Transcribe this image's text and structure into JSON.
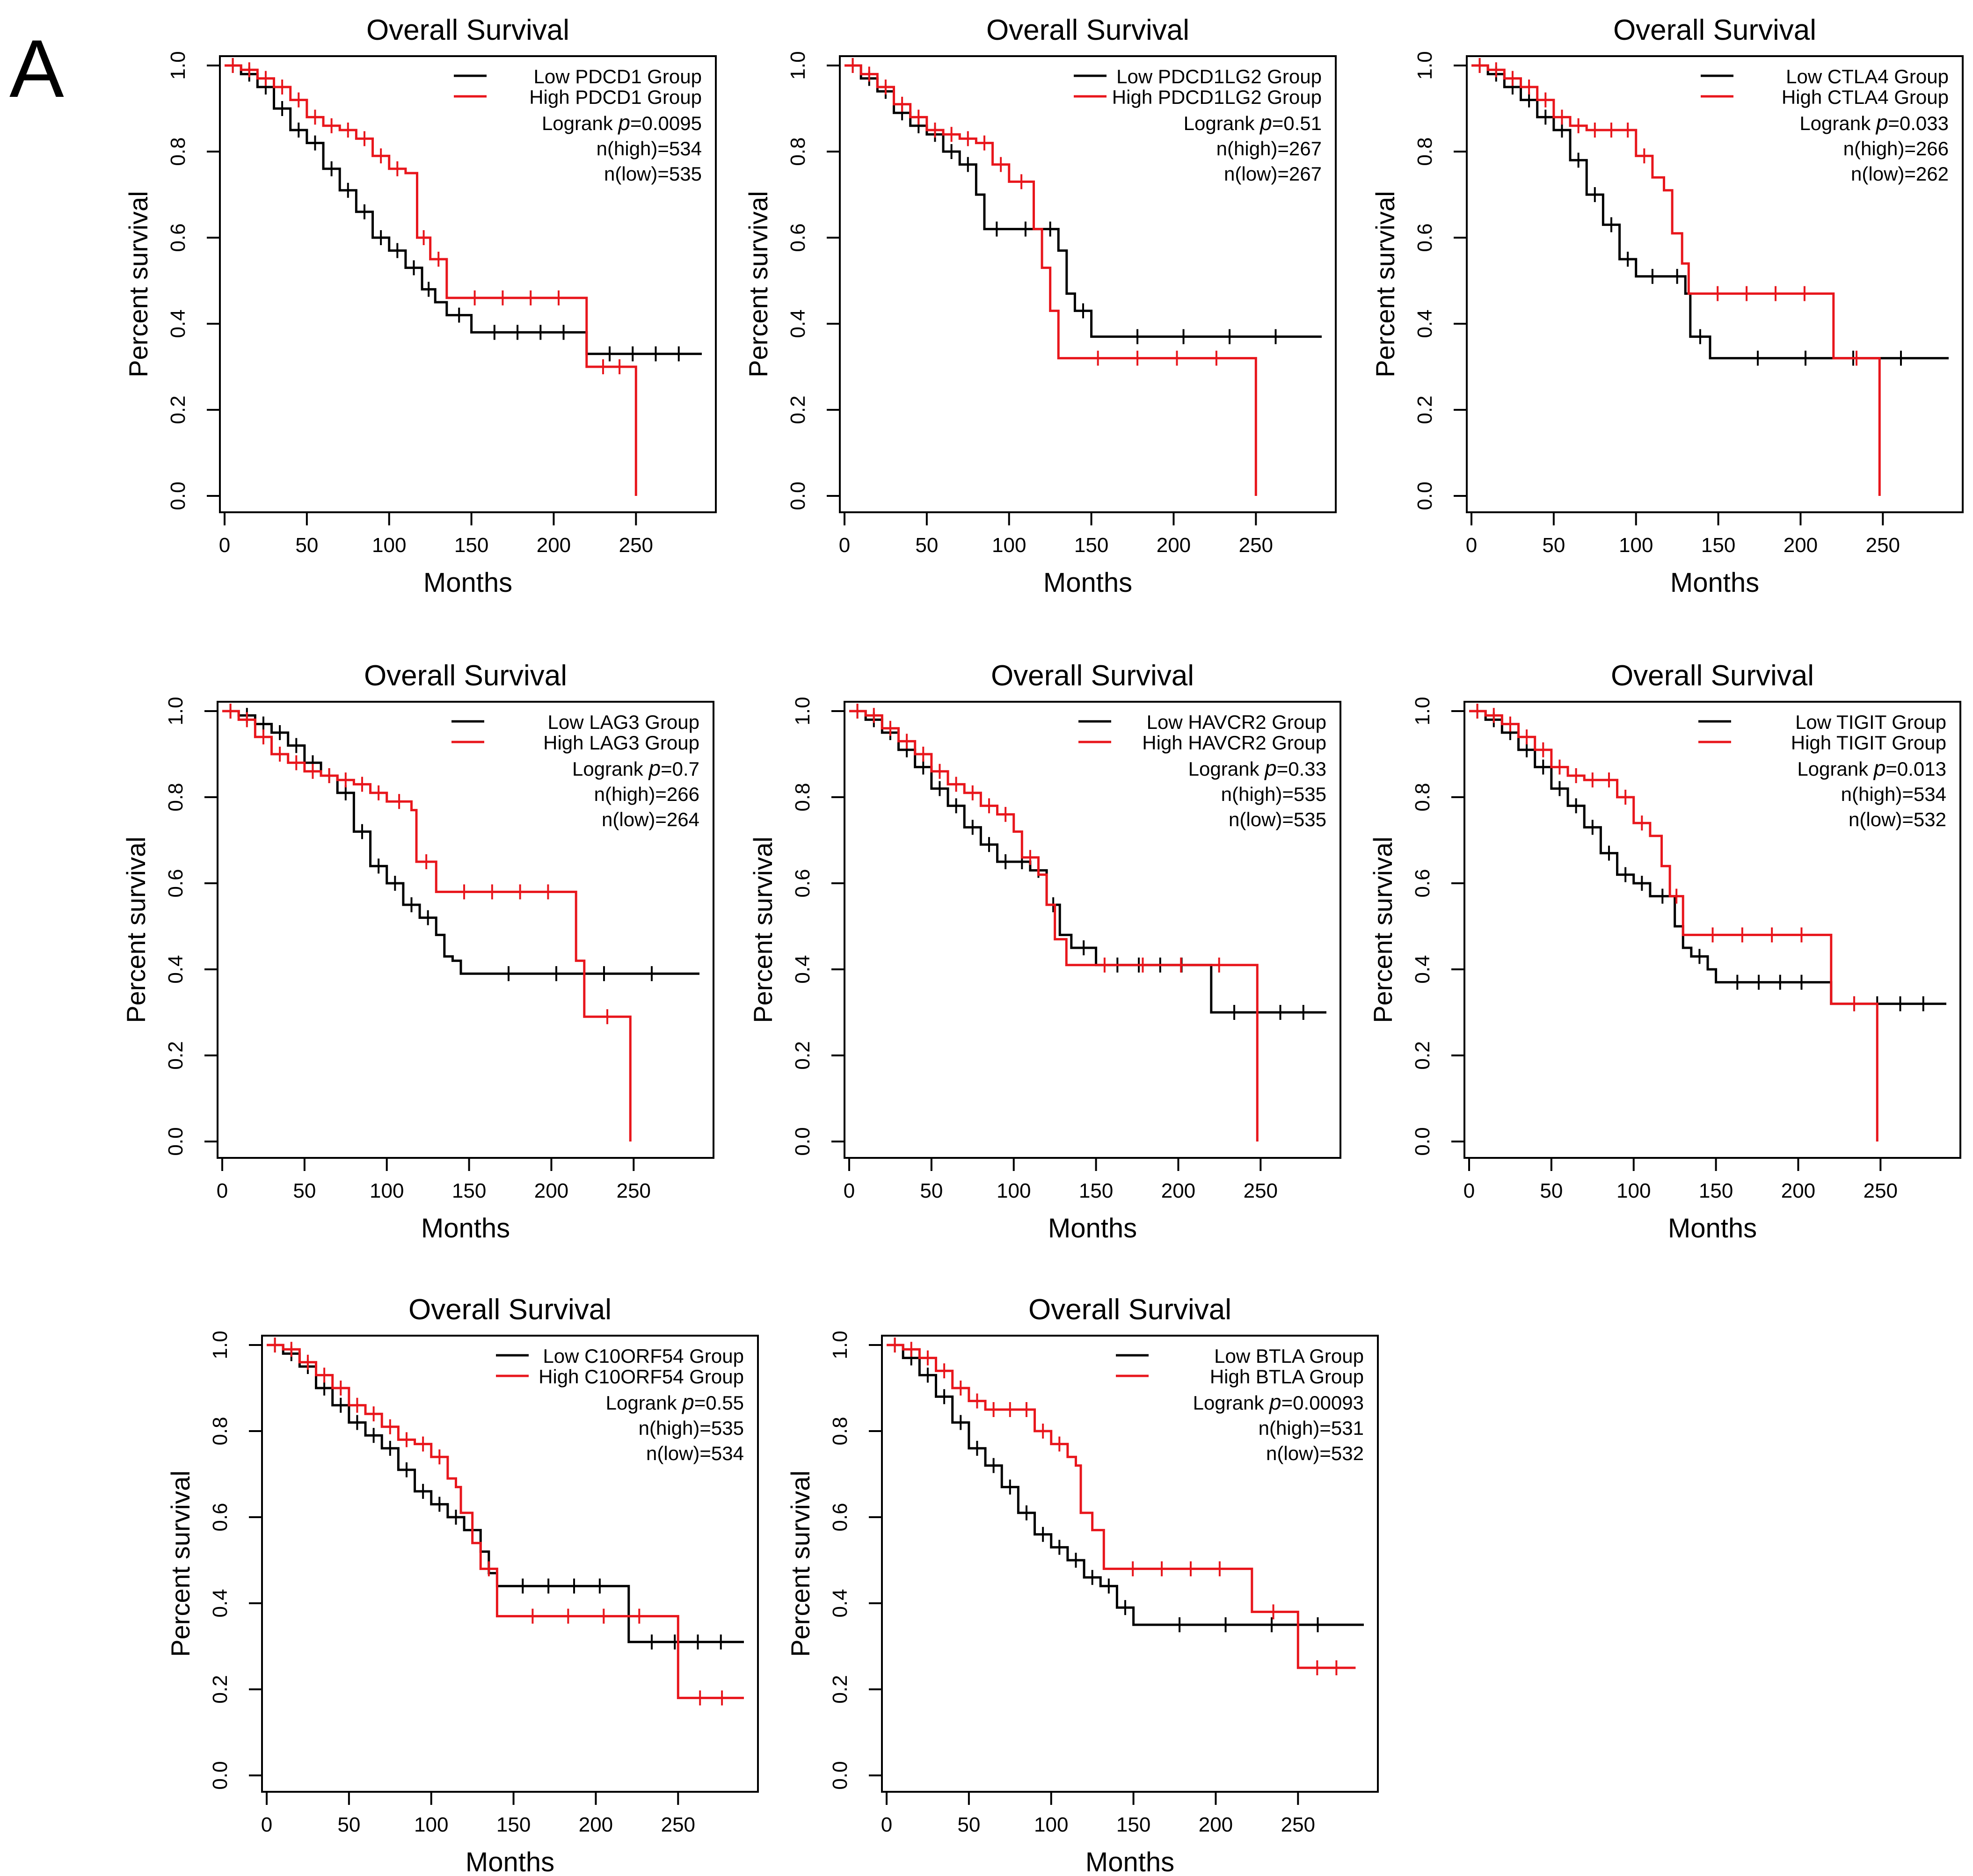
{
  "panel_label": "A",
  "colors": {
    "low": "#000000",
    "high": "#e8161c"
  },
  "chart_data": [
    {
      "type": "line",
      "subtype": "kaplan-meier",
      "title": "Overall Survival",
      "xlabel": "Months",
      "ylabel": "Percent survival",
      "xlim": [
        0,
        290
      ],
      "ylim": [
        0,
        1.0
      ],
      "xticks": [
        "0",
        "50",
        "100",
        "150",
        "200",
        "250"
      ],
      "yticks": [
        "0.0",
        "0.2",
        "0.4",
        "0.6",
        "0.8",
        "1.0"
      ],
      "legend": {
        "position": "top-right",
        "low": "Low PDCD1 Group",
        "high": "High PDCD1 Group"
      },
      "stats": {
        "logrank_prefix": "Logrank ",
        "p_label": "p",
        "p_value": "=0.0095",
        "n_high": "n(high)=534",
        "n_low": "n(low)=535"
      },
      "series": [
        {
          "name": "Low PDCD1 Group",
          "color": "low",
          "times": [
            0,
            10,
            20,
            30,
            40,
            50,
            60,
            70,
            80,
            90,
            100,
            110,
            120,
            128,
            135,
            150,
            220,
            290
          ],
          "survival": [
            1.0,
            0.98,
            0.95,
            0.9,
            0.85,
            0.82,
            0.76,
            0.71,
            0.66,
            0.6,
            0.57,
            0.53,
            0.48,
            0.45,
            0.42,
            0.38,
            0.33,
            0.33
          ]
        },
        {
          "name": "High PDCD1 Group",
          "color": "high",
          "times": [
            0,
            10,
            20,
            30,
            40,
            50,
            60,
            70,
            80,
            90,
            100,
            110,
            117,
            125,
            135,
            220,
            250,
            250
          ],
          "survival": [
            1.0,
            0.99,
            0.97,
            0.95,
            0.92,
            0.88,
            0.86,
            0.85,
            0.83,
            0.79,
            0.76,
            0.75,
            0.6,
            0.55,
            0.46,
            0.3,
            0.3,
            0.0
          ]
        }
      ]
    },
    {
      "type": "line",
      "subtype": "kaplan-meier",
      "title": "Overall Survival",
      "xlabel": "Months",
      "ylabel": "Percent survival",
      "xlim": [
        0,
        290
      ],
      "ylim": [
        0,
        1.0
      ],
      "xticks": [
        "0",
        "50",
        "100",
        "150",
        "200",
        "250"
      ],
      "yticks": [
        "0.0",
        "0.2",
        "0.4",
        "0.6",
        "0.8",
        "1.0"
      ],
      "legend": {
        "position": "top-right",
        "low": "Low PDCD1LG2 Group",
        "high": "High PDCD1LG2 Group"
      },
      "stats": {
        "logrank_prefix": "Logrank ",
        "p_label": "p",
        "p_value": "=0.51",
        "n_high": "n(high)=267",
        "n_low": "n(low)=267"
      },
      "series": [
        {
          "name": "Low PDCD1LG2 Group",
          "color": "low",
          "times": [
            0,
            10,
            20,
            30,
            40,
            50,
            60,
            70,
            80,
            85,
            100,
            120,
            130,
            135,
            140,
            150,
            290
          ],
          "survival": [
            1.0,
            0.97,
            0.94,
            0.89,
            0.86,
            0.84,
            0.8,
            0.77,
            0.7,
            0.62,
            0.62,
            0.62,
            0.57,
            0.47,
            0.43,
            0.37,
            0.37
          ]
        },
        {
          "name": "High PDCD1LG2 Group",
          "color": "high",
          "times": [
            0,
            10,
            20,
            30,
            40,
            50,
            60,
            70,
            80,
            90,
            100,
            115,
            120,
            125,
            130,
            250,
            250
          ],
          "survival": [
            1.0,
            0.98,
            0.95,
            0.91,
            0.88,
            0.85,
            0.84,
            0.83,
            0.82,
            0.77,
            0.73,
            0.62,
            0.53,
            0.43,
            0.32,
            0.32,
            0.0
          ]
        }
      ]
    },
    {
      "type": "line",
      "subtype": "kaplan-meier",
      "title": "Overall Survival",
      "xlabel": "Months",
      "ylabel": "Percent survival",
      "xlim": [
        0,
        290
      ],
      "ylim": [
        0,
        1.0
      ],
      "xticks": [
        "0",
        "50",
        "100",
        "150",
        "200",
        "250"
      ],
      "yticks": [
        "0.0",
        "0.2",
        "0.4",
        "0.6",
        "0.8",
        "1.0"
      ],
      "legend": {
        "position": "top-right",
        "low": "Low CTLA4 Group",
        "high": "High CTLA4 Group"
      },
      "stats": {
        "logrank_prefix": "Logrank ",
        "p_label": "p",
        "p_value": "=0.033",
        "n_high": "n(high)=266",
        "n_low": "n(low)=262"
      },
      "series": [
        {
          "name": "Low CTLA4 Group",
          "color": "low",
          "times": [
            0,
            10,
            20,
            30,
            40,
            50,
            60,
            70,
            80,
            90,
            100,
            120,
            130,
            133,
            145,
            290
          ],
          "survival": [
            1.0,
            0.98,
            0.95,
            0.92,
            0.88,
            0.85,
            0.78,
            0.7,
            0.63,
            0.55,
            0.51,
            0.51,
            0.47,
            0.37,
            0.32,
            0.32
          ]
        },
        {
          "name": "High CTLA4 Group",
          "color": "high",
          "times": [
            0,
            10,
            20,
            30,
            40,
            50,
            60,
            70,
            80,
            90,
            100,
            110,
            117,
            122,
            128,
            132,
            220,
            248,
            248
          ],
          "survival": [
            1.0,
            0.99,
            0.97,
            0.95,
            0.92,
            0.88,
            0.86,
            0.85,
            0.85,
            0.85,
            0.79,
            0.74,
            0.71,
            0.61,
            0.54,
            0.47,
            0.32,
            0.32,
            0.0
          ]
        }
      ]
    },
    {
      "type": "line",
      "subtype": "kaplan-meier",
      "title": "Overall Survival",
      "xlabel": "Months",
      "ylabel": "Percent survival",
      "xlim": [
        0,
        290
      ],
      "ylim": [
        0,
        1.0
      ],
      "xticks": [
        "0",
        "50",
        "100",
        "150",
        "200",
        "250"
      ],
      "yticks": [
        "0.0",
        "0.2",
        "0.4",
        "0.6",
        "0.8",
        "1.0"
      ],
      "legend": {
        "position": "top-right",
        "low": "Low LAG3 Group",
        "high": "High LAG3 Group"
      },
      "stats": {
        "logrank_prefix": "Logrank ",
        "p_label": "p",
        "p_value": "=0.7",
        "n_high": "n(high)=266",
        "n_low": "n(low)=264"
      },
      "series": [
        {
          "name": "Low LAG3 Group",
          "color": "low",
          "times": [
            0,
            10,
            20,
            30,
            40,
            50,
            60,
            70,
            80,
            90,
            100,
            110,
            120,
            130,
            135,
            140,
            145,
            290
          ],
          "survival": [
            1.0,
            0.99,
            0.97,
            0.95,
            0.92,
            0.88,
            0.85,
            0.81,
            0.72,
            0.64,
            0.6,
            0.55,
            0.52,
            0.48,
            0.43,
            0.42,
            0.39,
            0.39
          ]
        },
        {
          "name": "High LAG3 Group",
          "color": "high",
          "times": [
            0,
            10,
            20,
            30,
            40,
            50,
            60,
            70,
            80,
            90,
            100,
            115,
            118,
            130,
            215,
            220,
            248,
            248
          ],
          "survival": [
            1.0,
            0.98,
            0.94,
            0.9,
            0.88,
            0.86,
            0.85,
            0.84,
            0.83,
            0.81,
            0.79,
            0.77,
            0.65,
            0.58,
            0.42,
            0.29,
            0.29,
            0.0
          ]
        }
      ]
    },
    {
      "type": "line",
      "subtype": "kaplan-meier",
      "title": "Overall Survival",
      "xlabel": "Months",
      "ylabel": "Percent survival",
      "xlim": [
        0,
        290
      ],
      "ylim": [
        0,
        1.0
      ],
      "xticks": [
        "0",
        "50",
        "100",
        "150",
        "200",
        "250"
      ],
      "yticks": [
        "0.0",
        "0.2",
        "0.4",
        "0.6",
        "0.8",
        "1.0"
      ],
      "legend": {
        "position": "top-right",
        "low": "Low HAVCR2 Group",
        "high": "High HAVCR2 Group"
      },
      "stats": {
        "logrank_prefix": "Logrank ",
        "p_label": "p",
        "p_value": "=0.33",
        "n_high": "n(high)=535",
        "n_low": "n(low)=535"
      },
      "series": [
        {
          "name": "Low HAVCR2 Group",
          "color": "low",
          "times": [
            0,
            10,
            20,
            30,
            40,
            50,
            60,
            70,
            80,
            90,
            100,
            110,
            120,
            128,
            135,
            150,
            215,
            220,
            290
          ],
          "survival": [
            1.0,
            0.98,
            0.95,
            0.91,
            0.87,
            0.82,
            0.78,
            0.73,
            0.69,
            0.65,
            0.65,
            0.63,
            0.55,
            0.48,
            0.45,
            0.41,
            0.41,
            0.3,
            0.3
          ]
        },
        {
          "name": "High HAVCR2 Group",
          "color": "high",
          "times": [
            0,
            10,
            20,
            30,
            40,
            50,
            60,
            70,
            80,
            90,
            100,
            105,
            115,
            120,
            125,
            132,
            248,
            248
          ],
          "survival": [
            1.0,
            0.99,
            0.96,
            0.93,
            0.9,
            0.86,
            0.83,
            0.81,
            0.78,
            0.76,
            0.72,
            0.66,
            0.62,
            0.55,
            0.47,
            0.41,
            0.41,
            0.0
          ]
        }
      ]
    },
    {
      "type": "line",
      "subtype": "kaplan-meier",
      "title": "Overall Survival",
      "xlabel": "Months",
      "ylabel": "Percent survival",
      "xlim": [
        0,
        290
      ],
      "ylim": [
        0,
        1.0
      ],
      "xticks": [
        "0",
        "50",
        "100",
        "150",
        "200",
        "250"
      ],
      "yticks": [
        "0.0",
        "0.2",
        "0.4",
        "0.6",
        "0.8",
        "1.0"
      ],
      "legend": {
        "position": "top-right",
        "low": "Low TIGIT Group",
        "high": "High TIGIT Group"
      },
      "stats": {
        "logrank_prefix": "Logrank ",
        "p_label": "p",
        "p_value": "=0.013",
        "n_high": "n(high)=534",
        "n_low": "n(low)=532"
      },
      "series": [
        {
          "name": "Low TIGIT Group",
          "color": "low",
          "times": [
            0,
            10,
            20,
            30,
            40,
            50,
            60,
            70,
            80,
            90,
            100,
            110,
            125,
            130,
            135,
            145,
            150,
            215,
            220,
            290
          ],
          "survival": [
            1.0,
            0.98,
            0.95,
            0.91,
            0.87,
            0.82,
            0.78,
            0.73,
            0.67,
            0.62,
            0.6,
            0.57,
            0.5,
            0.45,
            0.43,
            0.4,
            0.37,
            0.37,
            0.32,
            0.32
          ]
        },
        {
          "name": "High TIGIT Group",
          "color": "high",
          "times": [
            0,
            10,
            20,
            30,
            40,
            50,
            60,
            70,
            80,
            90,
            100,
            110,
            117,
            122,
            130,
            220,
            248,
            248
          ],
          "survival": [
            1.0,
            0.99,
            0.97,
            0.94,
            0.91,
            0.87,
            0.85,
            0.84,
            0.84,
            0.8,
            0.74,
            0.71,
            0.64,
            0.57,
            0.48,
            0.32,
            0.32,
            0.0
          ]
        }
      ]
    },
    {
      "type": "line",
      "subtype": "kaplan-meier",
      "title": "Overall Survival",
      "xlabel": "Months",
      "ylabel": "Percent survival",
      "xlim": [
        0,
        290
      ],
      "ylim": [
        0,
        1.0
      ],
      "xticks": [
        "0",
        "50",
        "100",
        "150",
        "200",
        "250"
      ],
      "yticks": [
        "0.0",
        "0.2",
        "0.4",
        "0.6",
        "0.8",
        "1.0"
      ],
      "legend": {
        "position": "top-right",
        "low": "Low C10ORF54 Group",
        "high": "High C10ORF54 Group"
      },
      "stats": {
        "logrank_prefix": "Logrank ",
        "p_label": "p",
        "p_value": "=0.55",
        "n_high": "n(high)=535",
        "n_low": "n(low)=534"
      },
      "series": [
        {
          "name": "Low C10ORF54 Group",
          "color": "low",
          "times": [
            0,
            10,
            20,
            30,
            40,
            50,
            60,
            70,
            80,
            90,
            100,
            110,
            120,
            130,
            135,
            140,
            218,
            220,
            290
          ],
          "survival": [
            1.0,
            0.98,
            0.95,
            0.9,
            0.86,
            0.82,
            0.79,
            0.76,
            0.71,
            0.66,
            0.63,
            0.6,
            0.57,
            0.52,
            0.47,
            0.44,
            0.44,
            0.31,
            0.31
          ]
        },
        {
          "name": "High C10ORF54 Group",
          "color": "high",
          "times": [
            0,
            10,
            20,
            30,
            40,
            50,
            60,
            70,
            80,
            90,
            100,
            110,
            115,
            118,
            125,
            130,
            140,
            248,
            250,
            290
          ],
          "survival": [
            1.0,
            0.99,
            0.96,
            0.93,
            0.9,
            0.86,
            0.84,
            0.81,
            0.78,
            0.77,
            0.74,
            0.69,
            0.67,
            0.61,
            0.54,
            0.48,
            0.37,
            0.37,
            0.18,
            0.18
          ]
        }
      ]
    },
    {
      "type": "line",
      "subtype": "kaplan-meier",
      "title": "Overall Survival",
      "xlabel": "Months",
      "ylabel": "Percent survival",
      "xlim": [
        0,
        290
      ],
      "ylim": [
        0,
        1.0
      ],
      "xticks": [
        "0",
        "50",
        "100",
        "150",
        "200",
        "250"
      ],
      "yticks": [
        "0.0",
        "0.2",
        "0.4",
        "0.6",
        "0.8",
        "1.0"
      ],
      "legend": {
        "position": "top-right",
        "low": "Low BTLA Group",
        "high": "High BTLA Group"
      },
      "stats": {
        "logrank_prefix": "Logrank ",
        "p_label": "p",
        "p_value": "=0.00093",
        "n_high": "n(high)=531",
        "n_low": "n(low)=532"
      },
      "series": [
        {
          "name": "Low BTLA Group",
          "color": "low",
          "times": [
            0,
            10,
            20,
            30,
            40,
            50,
            60,
            70,
            80,
            90,
            100,
            110,
            120,
            130,
            140,
            150,
            290
          ],
          "survival": [
            1.0,
            0.97,
            0.93,
            0.88,
            0.82,
            0.76,
            0.72,
            0.67,
            0.61,
            0.56,
            0.53,
            0.5,
            0.46,
            0.44,
            0.39,
            0.35,
            0.35
          ]
        },
        {
          "name": "High BTLA Group",
          "color": "high",
          "times": [
            0,
            10,
            20,
            30,
            40,
            50,
            60,
            70,
            80,
            90,
            100,
            110,
            115,
            118,
            125,
            132,
            220,
            222,
            248,
            250,
            285
          ],
          "survival": [
            1.0,
            0.99,
            0.97,
            0.94,
            0.9,
            0.87,
            0.85,
            0.85,
            0.85,
            0.8,
            0.77,
            0.74,
            0.72,
            0.61,
            0.57,
            0.48,
            0.48,
            0.38,
            0.38,
            0.25,
            0.25
          ]
        }
      ]
    }
  ]
}
